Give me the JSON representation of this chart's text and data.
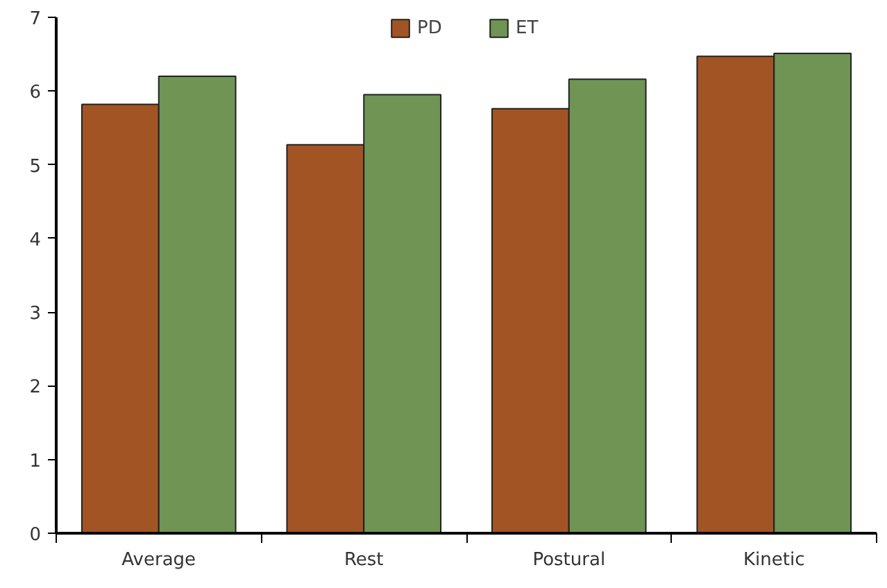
{
  "chart_data": {
    "type": "bar",
    "categories": [
      "Average",
      "Rest",
      "Postural",
      "Kinetic"
    ],
    "series": [
      {
        "name": "PD",
        "color": "#a35425",
        "values": [
          5.82,
          5.27,
          5.76,
          6.47
        ]
      },
      {
        "name": "ET",
        "color": "#6f9454",
        "values": [
          6.2,
          5.95,
          6.16,
          6.51
        ]
      }
    ],
    "ylim": [
      0,
      7
    ],
    "yticks": [
      0,
      1,
      2,
      3,
      4,
      5,
      6,
      7
    ],
    "legend": "top",
    "grid": false
  }
}
